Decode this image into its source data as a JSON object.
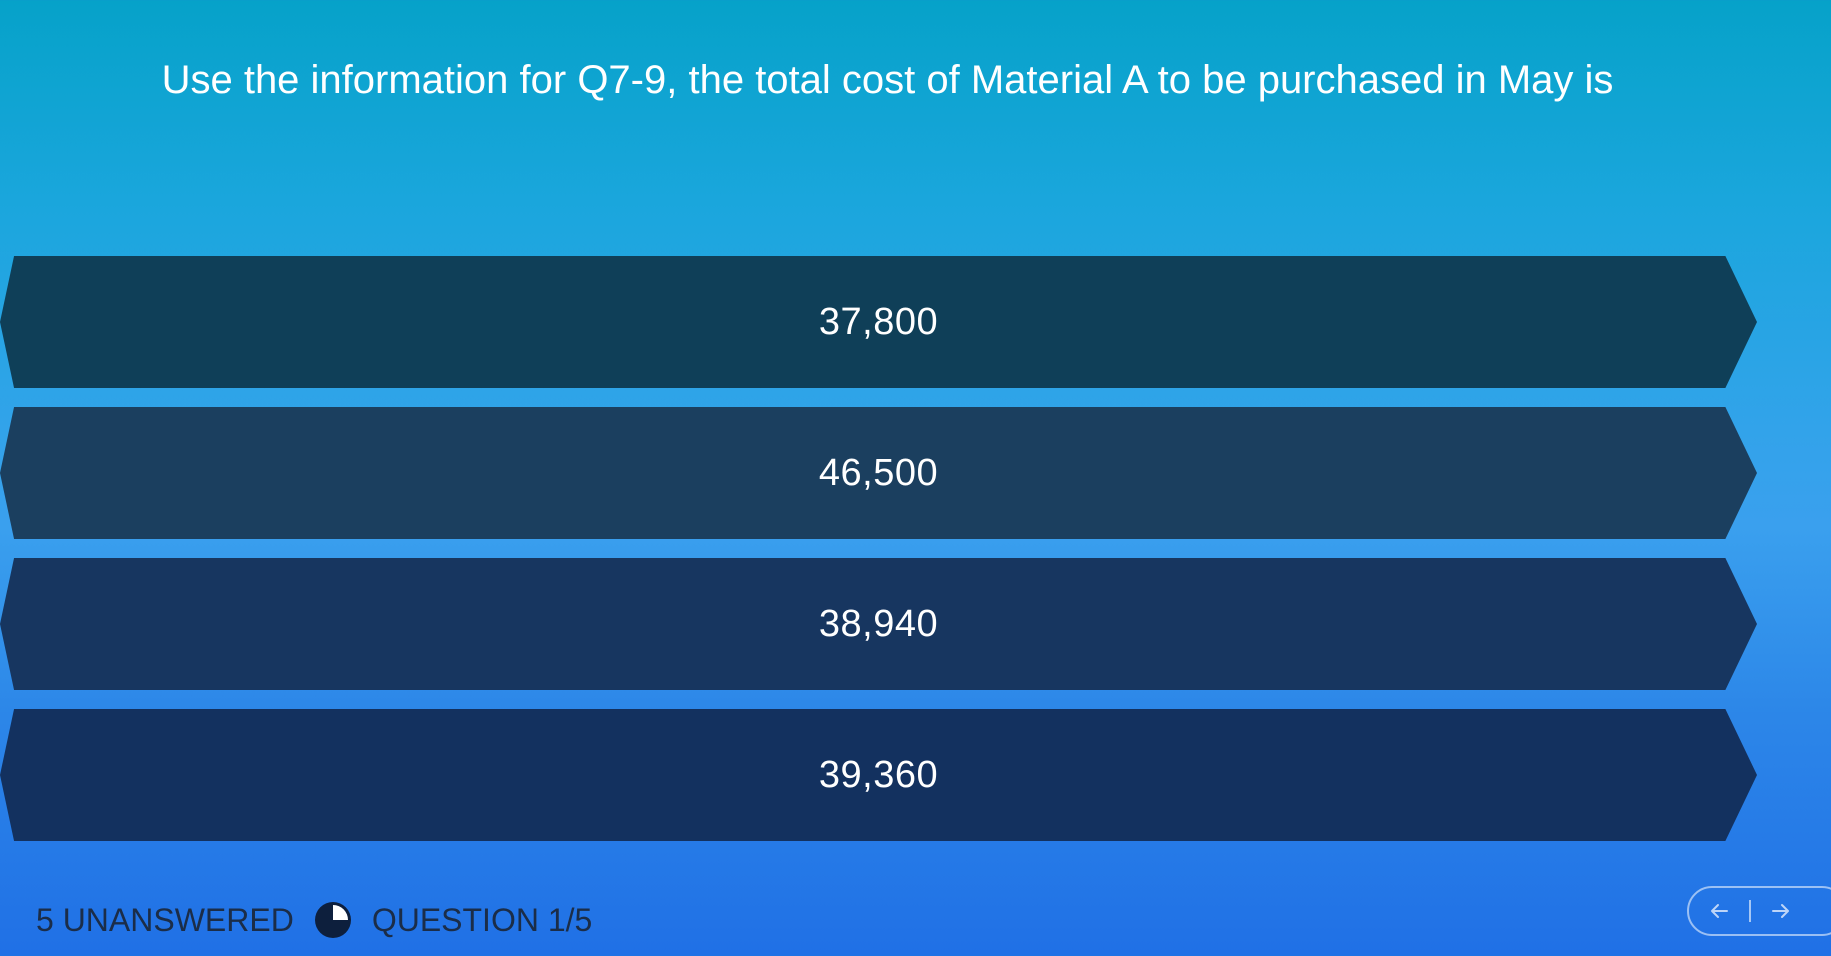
{
  "question": {
    "text": "Use the information for Q7-9, the total cost of Material A to be purchased in May is"
  },
  "options": [
    {
      "label": "37,800"
    },
    {
      "label": "46,500"
    },
    {
      "label": "38,940"
    },
    {
      "label": "39,360"
    }
  ],
  "footer": {
    "unanswered_label": "5 UNANSWERED",
    "progress_icon": "progress-pie-icon",
    "progress_fraction": 0.25,
    "question_counter": "QUESTION 1/5"
  },
  "nav": {
    "prev_icon": "arrow-left-icon",
    "next_icon": "arrow-right-icon"
  },
  "colors": {
    "background_top": "#06a2c9",
    "background_bottom": "#2070e6",
    "option_dark": "#13315f",
    "text": "#ffffff",
    "footer_text": "#1b2d48"
  }
}
